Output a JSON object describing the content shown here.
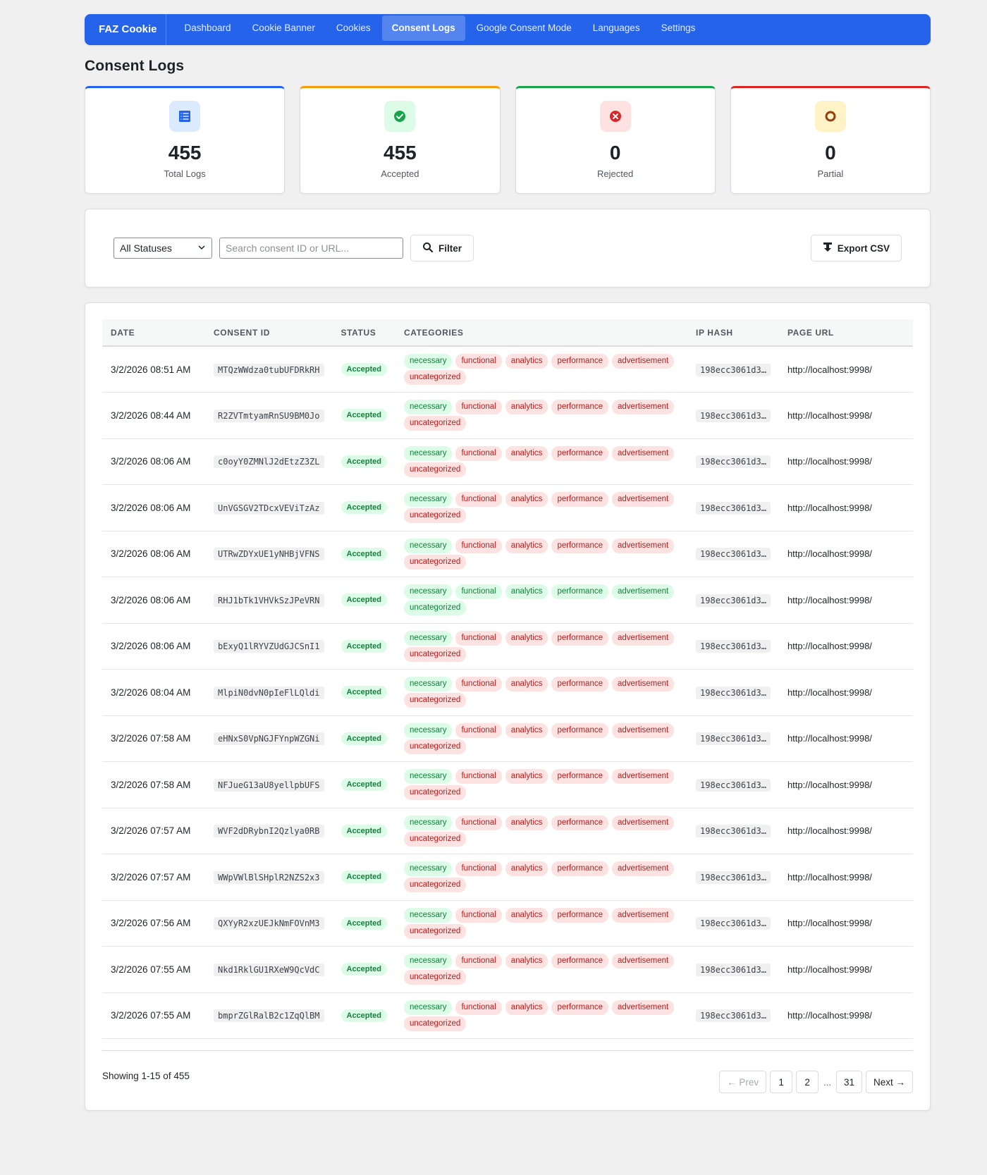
{
  "nav": {
    "brand": "FAZ Cookie",
    "items": [
      "Dashboard",
      "Cookie Banner",
      "Cookies",
      "Consent Logs",
      "Google Consent Mode",
      "Languages",
      "Settings"
    ],
    "active_index": 3
  },
  "page_title": "Consent Logs",
  "stats": [
    {
      "value": "455",
      "label": "Total Logs",
      "color": "#2563eb",
      "icon_bg": "#dbeafe",
      "icon": "list-icon"
    },
    {
      "value": "455",
      "label": "Accepted",
      "color": "#f59e0b",
      "icon_bg": "#dcfce7",
      "icon": "check-circle-icon"
    },
    {
      "value": "0",
      "label": "Rejected",
      "color": "#16a34a",
      "icon_bg": "#fee2e2",
      "icon": "x-circle-icon"
    },
    {
      "value": "0",
      "label": "Partial",
      "color": "#dc2626",
      "icon_bg": "#fef3c7",
      "icon": "ring-icon"
    }
  ],
  "filters": {
    "status_value": "All Statuses",
    "search_placeholder": "Search consent ID or URL...",
    "filter_label": "Filter",
    "export_label": "Export CSV"
  },
  "table": {
    "headers": [
      "DATE",
      "CONSENT ID",
      "STATUS",
      "CATEGORIES",
      "IP HASH",
      "PAGE URL"
    ],
    "categories": [
      "necessary",
      "functional",
      "analytics",
      "performance",
      "advertisement",
      "uncategorized"
    ],
    "rows": [
      {
        "date": "3/2/2026 08:51 AM",
        "id": "MTQzWWdza0tubUFDRkRH",
        "status": "Accepted",
        "granted": [
          true,
          false,
          false,
          false,
          false,
          false
        ],
        "ip": "198ecc3061d3…",
        "url": "http://localhost:9998/"
      },
      {
        "date": "3/2/2026 08:44 AM",
        "id": "R2ZVTmtyamRnSU9BM0Jo",
        "status": "Accepted",
        "granted": [
          true,
          false,
          false,
          false,
          false,
          false
        ],
        "ip": "198ecc3061d3…",
        "url": "http://localhost:9998/"
      },
      {
        "date": "3/2/2026 08:06 AM",
        "id": "c0oyY0ZMNlJ2dEtzZ3ZL",
        "status": "Accepted",
        "granted": [
          true,
          false,
          false,
          false,
          false,
          false
        ],
        "ip": "198ecc3061d3…",
        "url": "http://localhost:9998/"
      },
      {
        "date": "3/2/2026 08:06 AM",
        "id": "UnVGSGV2TDcxVEViTzAz",
        "status": "Accepted",
        "granted": [
          true,
          false,
          false,
          false,
          false,
          false
        ],
        "ip": "198ecc3061d3…",
        "url": "http://localhost:9998/"
      },
      {
        "date": "3/2/2026 08:06 AM",
        "id": "UTRwZDYxUE1yNHBjVFNS",
        "status": "Accepted",
        "granted": [
          true,
          false,
          false,
          false,
          false,
          false
        ],
        "ip": "198ecc3061d3…",
        "url": "http://localhost:9998/"
      },
      {
        "date": "3/2/2026 08:06 AM",
        "id": "RHJ1bTk1VHVkSzJPeVRN",
        "status": "Accepted",
        "granted": [
          true,
          true,
          true,
          true,
          true,
          true
        ],
        "ip": "198ecc3061d3…",
        "url": "http://localhost:9998/"
      },
      {
        "date": "3/2/2026 08:06 AM",
        "id": "bExyQ1lRYVZUdGJCSnI1",
        "status": "Accepted",
        "granted": [
          true,
          false,
          false,
          false,
          false,
          false
        ],
        "ip": "198ecc3061d3…",
        "url": "http://localhost:9998/"
      },
      {
        "date": "3/2/2026 08:04 AM",
        "id": "MlpiN0dvN0pIeFlLQldi",
        "status": "Accepted",
        "granted": [
          true,
          false,
          false,
          false,
          false,
          false
        ],
        "ip": "198ecc3061d3…",
        "url": "http://localhost:9998/"
      },
      {
        "date": "3/2/2026 07:58 AM",
        "id": "eHNxS0VpNGJFYnpWZGNi",
        "status": "Accepted",
        "granted": [
          true,
          false,
          false,
          false,
          false,
          false
        ],
        "ip": "198ecc3061d3…",
        "url": "http://localhost:9998/"
      },
      {
        "date": "3/2/2026 07:58 AM",
        "id": "NFJueG13aU8yellpbUFS",
        "status": "Accepted",
        "granted": [
          true,
          false,
          false,
          false,
          false,
          false
        ],
        "ip": "198ecc3061d3…",
        "url": "http://localhost:9998/"
      },
      {
        "date": "3/2/2026 07:57 AM",
        "id": "WVF2dDRybnI2Qzlya0RB",
        "status": "Accepted",
        "granted": [
          true,
          false,
          false,
          false,
          false,
          false
        ],
        "ip": "198ecc3061d3…",
        "url": "http://localhost:9998/"
      },
      {
        "date": "3/2/2026 07:57 AM",
        "id": "WWpVWlBlSHplR2NZS2x3",
        "status": "Accepted",
        "granted": [
          true,
          false,
          false,
          false,
          false,
          false
        ],
        "ip": "198ecc3061d3…",
        "url": "http://localhost:9998/"
      },
      {
        "date": "3/2/2026 07:56 AM",
        "id": "QXYyR2xzUEJkNmFOVnM3",
        "status": "Accepted",
        "granted": [
          true,
          false,
          false,
          false,
          false,
          false
        ],
        "ip": "198ecc3061d3…",
        "url": "http://localhost:9998/"
      },
      {
        "date": "3/2/2026 07:55 AM",
        "id": "Nkd1RklGU1RXeW9QcVdC",
        "status": "Accepted",
        "granted": [
          true,
          false,
          false,
          false,
          false,
          false
        ],
        "ip": "198ecc3061d3…",
        "url": "http://localhost:9998/"
      },
      {
        "date": "3/2/2026 07:55 AM",
        "id": "bmprZGlRalB2c1ZqQlBM",
        "status": "Accepted",
        "granted": [
          true,
          false,
          false,
          false,
          false,
          false
        ],
        "ip": "198ecc3061d3…",
        "url": "http://localhost:9998/"
      }
    ]
  },
  "pagination": {
    "showing": "Showing 1-15 of 455",
    "prev": "← Prev",
    "pages": [
      "1",
      "2",
      "31"
    ],
    "ellipsis": "...",
    "next": "Next →"
  }
}
